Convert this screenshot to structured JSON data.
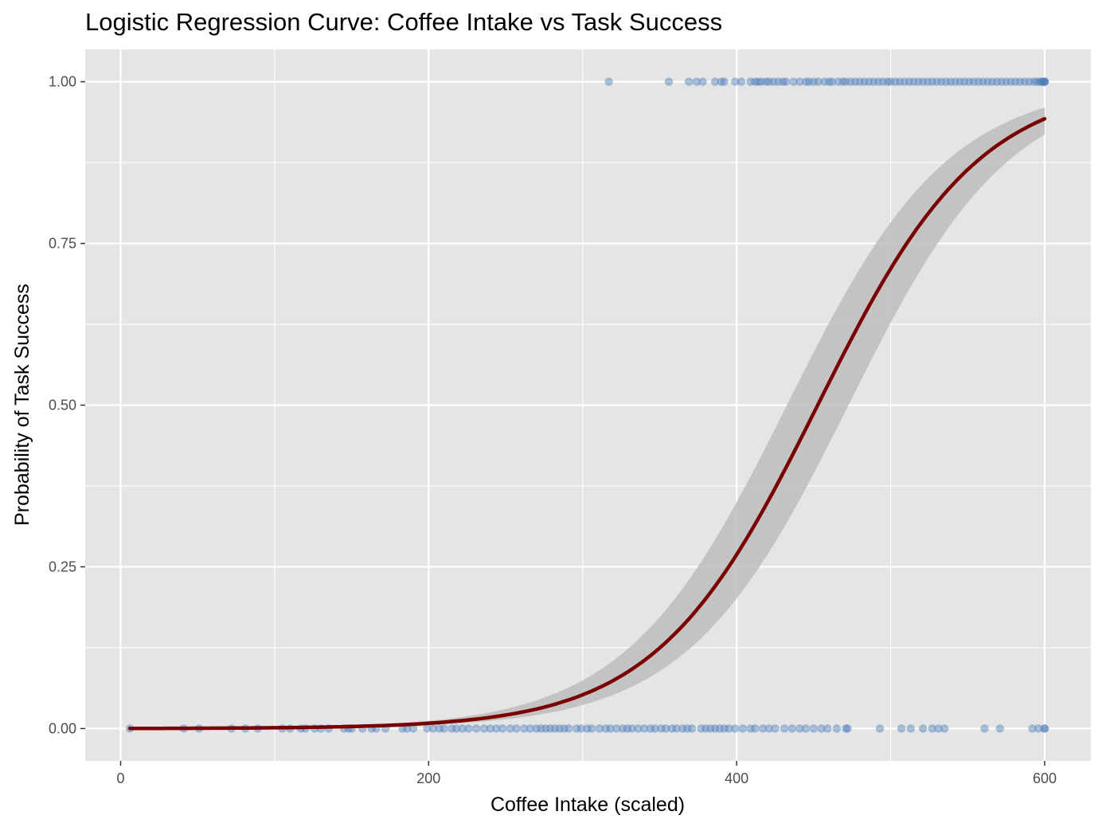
{
  "chart_data": {
    "type": "scatter",
    "title": "Logistic Regression Curve: Coffee Intake vs Task Success",
    "xlabel": "Coffee Intake (scaled)",
    "ylabel": "Probability of Task Success",
    "xlim": [
      -23,
      630
    ],
    "ylim": [
      -0.05,
      1.05
    ],
    "x_ticks": [
      0,
      200,
      400,
      600
    ],
    "y_ticks": [
      0,
      0.25,
      0.5,
      0.75,
      1
    ],
    "x_tick_labels": [
      "0",
      "200",
      "400",
      "600"
    ],
    "y_tick_labels": [
      "0.00",
      "0.25",
      "0.50",
      "0.75",
      "1.00"
    ],
    "grid": true,
    "legend": "none",
    "background": "#e5e5e5",
    "gridline_color": "#ffffff",
    "point_color": "#4a7ab5",
    "curve_color": "#7a0000",
    "ribbon_color": "#bdbdbd",
    "series": [
      {
        "type": "scatter",
        "points_success": [
          317,
          356,
          369,
          374,
          378,
          386,
          390,
          392,
          399,
          403,
          409,
          412,
          414,
          416,
          419,
          421,
          424,
          427,
          430,
          432,
          437,
          441,
          445,
          447,
          450,
          453,
          457,
          460,
          462,
          466,
          469,
          471,
          474,
          477,
          480,
          483,
          486,
          489,
          492,
          495,
          498,
          500,
          503,
          506,
          509,
          512,
          515,
          518,
          521,
          524,
          527,
          530,
          533,
          536,
          539,
          542,
          545,
          548,
          551,
          554,
          557,
          560,
          563,
          566,
          569,
          572,
          575,
          578,
          581,
          584,
          587,
          590,
          593,
          595,
          597,
          598,
          599,
          600,
          600,
          600
        ],
        "points_failure": [
          6,
          41,
          51,
          72,
          81,
          89,
          105,
          110,
          117,
          120,
          126,
          130,
          135,
          145,
          148,
          150,
          157,
          163,
          166,
          172,
          183,
          186,
          190,
          199,
          203,
          207,
          210,
          215,
          218,
          222,
          226,
          231,
          236,
          240,
          244,
          248,
          253,
          257,
          262,
          266,
          270,
          273,
          276,
          279,
          282,
          285,
          288,
          291,
          296,
          299,
          303,
          306,
          311,
          315,
          318,
          322,
          326,
          329,
          332,
          336,
          340,
          344,
          347,
          351,
          354,
          358,
          361,
          365,
          368,
          371,
          377,
          380,
          383,
          386,
          389,
          392,
          395,
          399,
          404,
          409,
          412,
          417,
          421,
          425,
          431,
          436,
          441,
          445,
          450,
          455,
          459,
          465,
          471,
          472,
          493,
          507,
          513,
          521,
          527,
          531,
          535,
          561,
          571,
          592,
          596,
          600,
          600
        ]
      },
      {
        "type": "line",
        "model": "logistic",
        "intercept": -8.6,
        "slope": 0.019,
        "x_range": [
          6,
          600
        ],
        "ci_halfwidth_logit": 0.38
      }
    ]
  }
}
